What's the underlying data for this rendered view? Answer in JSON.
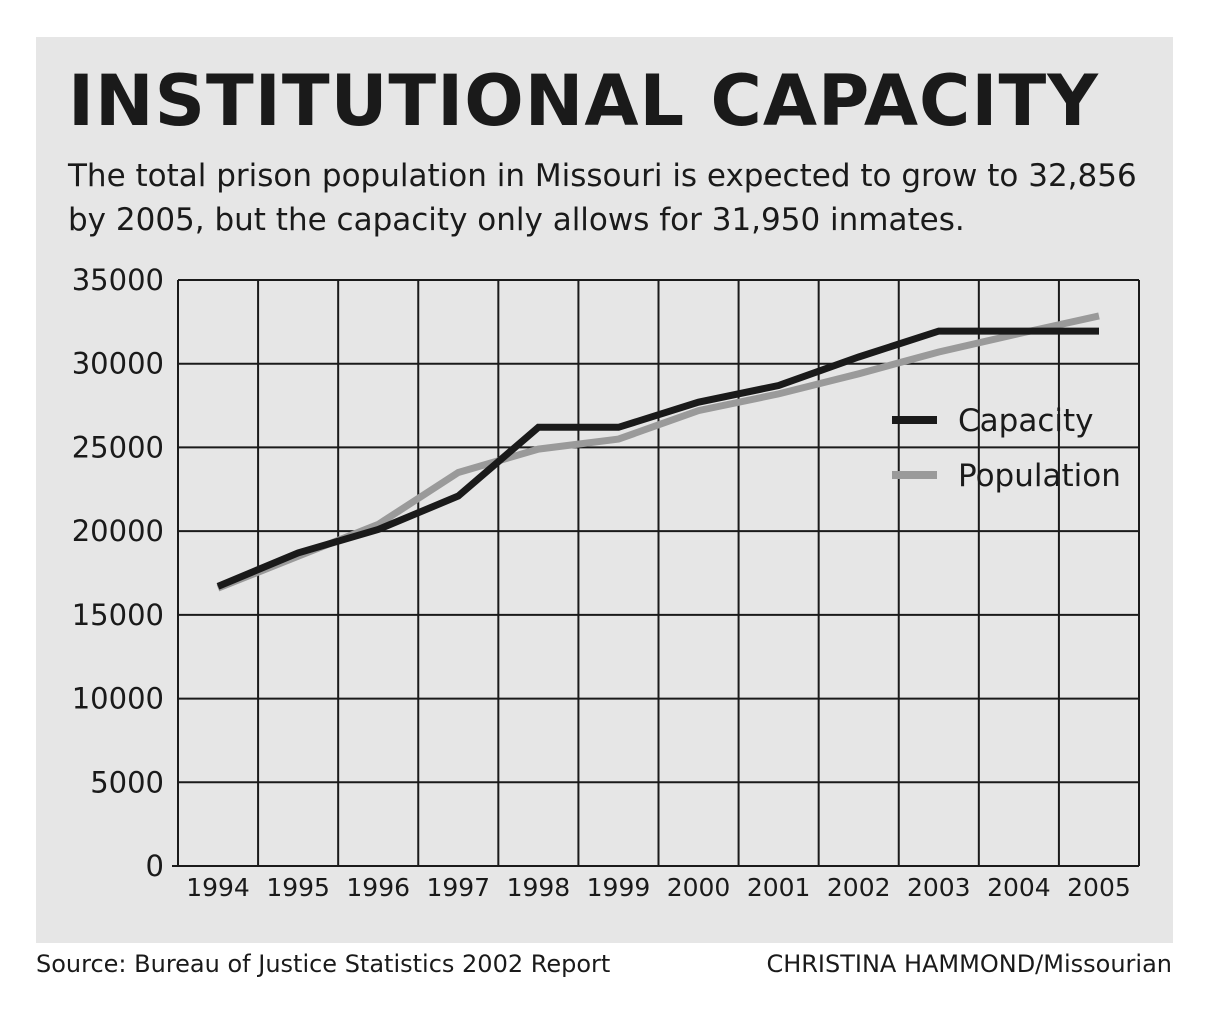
{
  "header": {
    "title": "INSTITUTIONAL CAPACITY",
    "subtitle": "The total prison population in Missouri is expected to grow to 32,856 by 2005, but the capacity only allows for 31,950 inmates."
  },
  "footer": {
    "source": "Source: Bureau of Justice Statistics 2002 Report",
    "credit": "CHRISTINA HAMMOND/Missourian"
  },
  "colors": {
    "panel_background": "#e6e6e6",
    "grid": "#1a1a1a",
    "capacity": "#1a1a1a",
    "population": "#9a9a9a"
  },
  "chart_data": {
    "type": "line",
    "title": "INSTITUTIONAL CAPACITY",
    "xlabel": "",
    "ylabel": "",
    "categories": [
      "1994",
      "1995",
      "1996",
      "1997",
      "1998",
      "1999",
      "2000",
      "2001",
      "2002",
      "2003",
      "2004",
      "2005"
    ],
    "y_ticks": [
      "0",
      "5000",
      "10000",
      "15000",
      "20000",
      "25000",
      "30000",
      "35000"
    ],
    "ylim": [
      0,
      35000
    ],
    "grid": true,
    "legend_position": "right",
    "series": [
      {
        "name": "Capacity",
        "color": "#1a1a1a",
        "values": [
          16700,
          18700,
          20100,
          22100,
          26200,
          26200,
          27700,
          28700,
          30400,
          31950,
          31950,
          31950
        ]
      },
      {
        "name": "Population",
        "color": "#9a9a9a",
        "values": [
          16600,
          18500,
          20400,
          23500,
          24900,
          25500,
          27200,
          28200,
          29400,
          30700,
          31800,
          32856
        ]
      }
    ]
  }
}
